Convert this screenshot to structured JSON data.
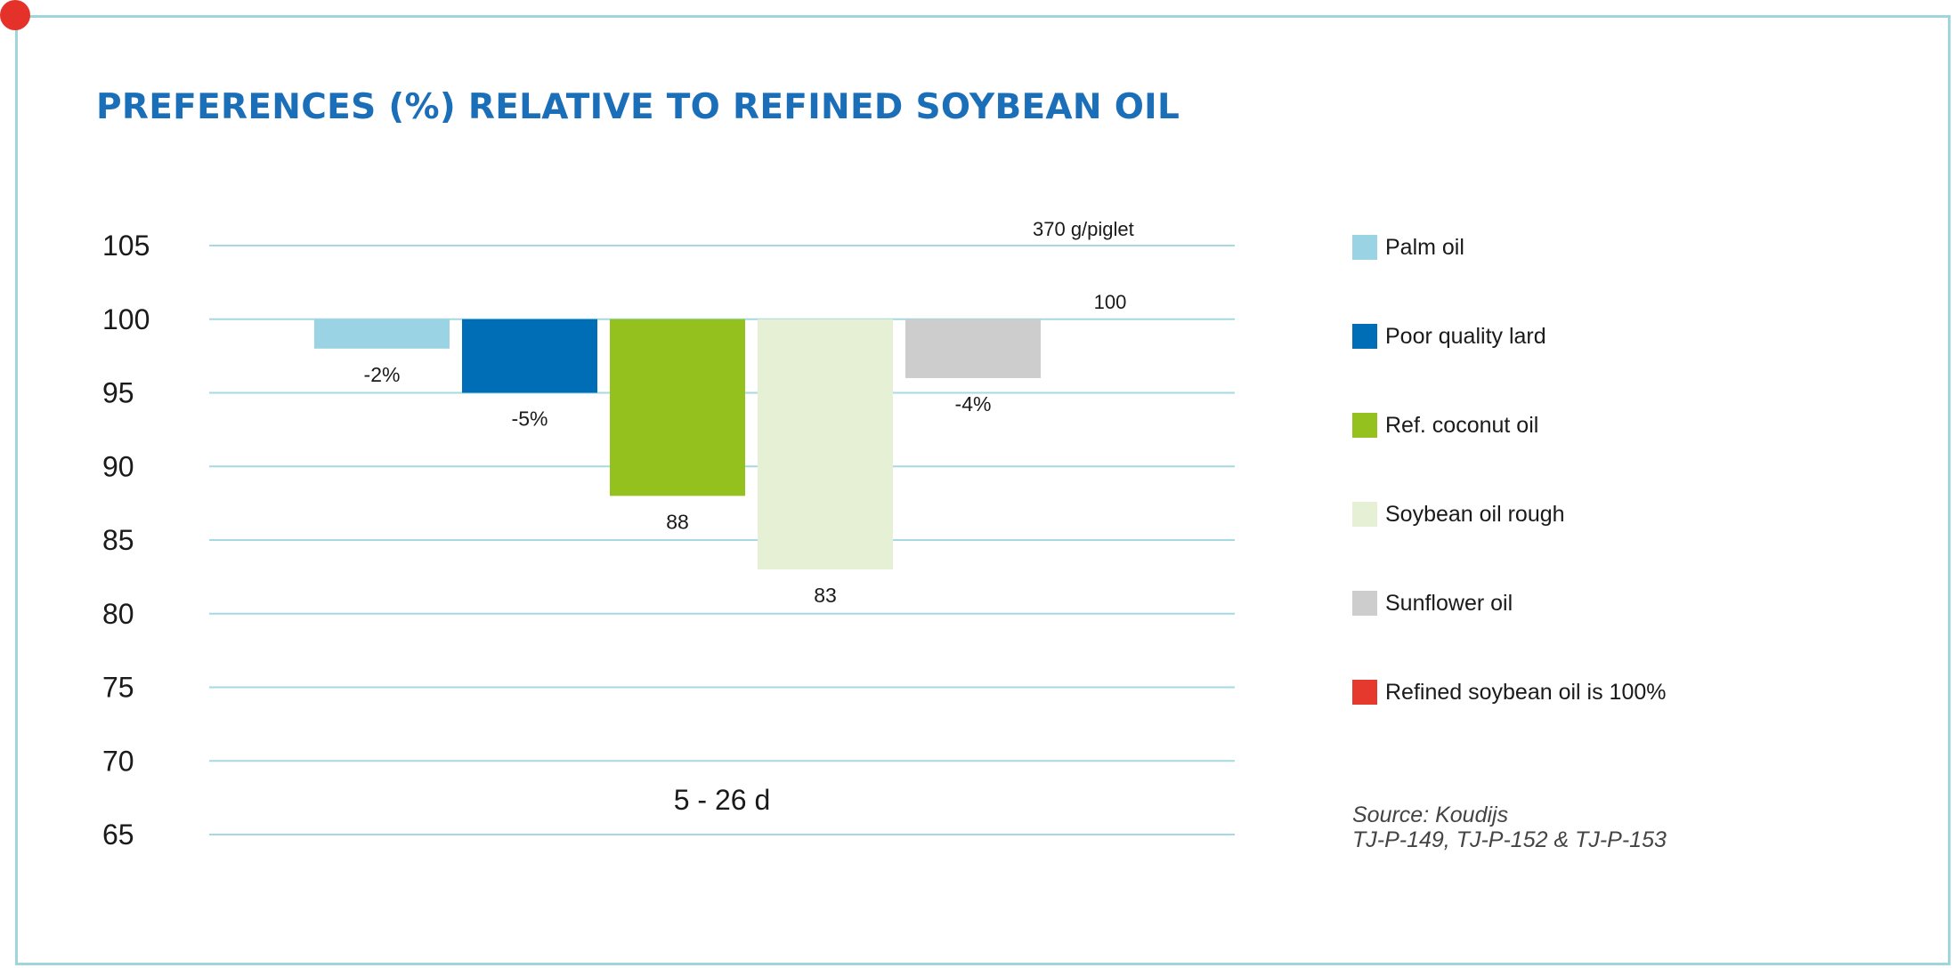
{
  "chart_data": {
    "type": "bar",
    "title": "PREFERENCES (%) RELATIVE TO REFINED SOYBEAN OIL",
    "xlabel": "5 - 26 d",
    "ylabel": "",
    "ylim": [
      65,
      105
    ],
    "yticks": [
      "105",
      "100",
      "95",
      "90",
      "85",
      "80",
      "75",
      "70",
      "65"
    ],
    "baseline": 100,
    "reference_label": "370 g/piglet",
    "reference_value_label": "100",
    "grid": true,
    "legend_position": "right",
    "series": [
      {
        "name": "Palm oil",
        "value": 98,
        "label": "-2%",
        "color": "#9ad3e3"
      },
      {
        "name": "Poor quality lard",
        "value": 95,
        "label": "-5%",
        "color": "#006eb6"
      },
      {
        "name": "Ref. coconut oil",
        "value": 88,
        "label": "88",
        "color": "#95c11f"
      },
      {
        "name": "Soybean oil rough",
        "value": 83,
        "label": "83",
        "color": "#e5f0d4"
      },
      {
        "name": "Sunflower oil",
        "value": 96,
        "label": "-4%",
        "color": "#cdcdcd"
      },
      {
        "name": "Refined soybean oil is 100%",
        "value": 100,
        "label": "100",
        "color": "#e4392c"
      }
    ]
  },
  "source": {
    "line1": "Source: Koudijs",
    "line2": "TJ-P-149, TJ-P-152 & TJ-P-153"
  },
  "colors": {
    "title": "#1b6eb8",
    "gridline": "#a6d9e2",
    "frame": "#9fd5dc",
    "corner_dot": "#e4322b"
  }
}
